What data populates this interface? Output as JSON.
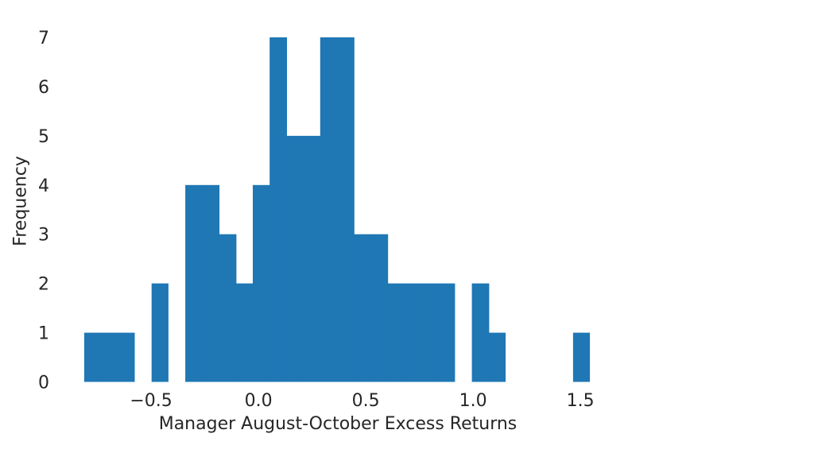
{
  "figure": {
    "background": "#ffffff"
  },
  "chart_data": {
    "type": "bar",
    "subtype": "histogram",
    "title": "",
    "xlabel": "Manager August-October Excess Returns",
    "ylabel": "Frequency",
    "bar_color": "#1f77b4",
    "text_color": "#262626",
    "grid": false,
    "legend": null,
    "bin_edges": [
      -0.8119,
      -0.7333,
      -0.6548,
      -0.5762,
      -0.4977,
      -0.4191,
      -0.3406,
      -0.2621,
      -0.1835,
      -0.105,
      -0.0264,
      0.0521,
      0.1307,
      0.2092,
      0.2877,
      0.3663,
      0.4448,
      0.5234,
      0.6019,
      0.6805,
      0.759,
      0.8375,
      0.9161,
      0.9946,
      1.0732,
      1.1517,
      1.2303,
      1.3088,
      1.3873,
      1.4659,
      1.5444
    ],
    "counts": [
      1,
      1,
      1,
      0,
      2,
      0,
      4,
      4,
      3,
      2,
      4,
      7,
      5,
      5,
      7,
      7,
      3,
      3,
      2,
      2,
      2,
      2,
      0,
      2,
      1,
      0,
      0,
      0,
      0,
      1
    ],
    "x_tick_values": [
      -0.5,
      0.0,
      0.5,
      1.0,
      1.5
    ],
    "x_tick_labels": [
      "−0.5",
      "0.0",
      "0.5",
      "1.0",
      "1.5"
    ],
    "y_tick_values": [
      0,
      1,
      2,
      3,
      4,
      5,
      6,
      7
    ],
    "y_tick_labels": [
      "0",
      "1",
      "2",
      "3",
      "4",
      "5",
      "6",
      "7"
    ],
    "xlim": [
      -0.93,
      1.66
    ],
    "ylim": [
      0,
      7.35
    ]
  }
}
